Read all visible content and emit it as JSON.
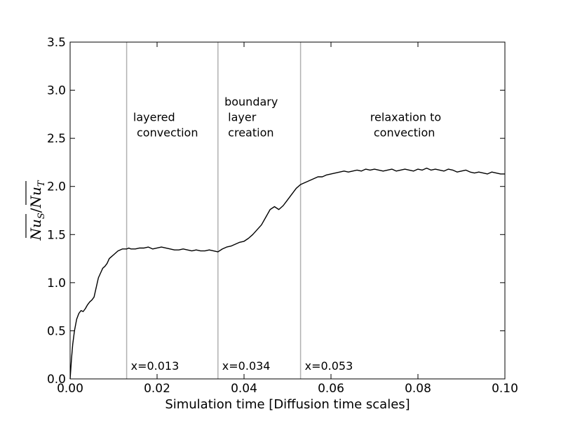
{
  "chart_data": {
    "type": "line",
    "xlabel": "Simulation time [Diffusion time scales]",
    "ylabel": "Nu_S / Nu_T",
    "xlim": [
      0.0,
      0.1
    ],
    "ylim": [
      0.0,
      3.5
    ],
    "x_ticks": [
      0.0,
      0.02,
      0.04,
      0.06,
      0.08,
      0.1
    ],
    "x_tick_labels": [
      "0.00",
      "0.02",
      "0.04",
      "0.06",
      "0.08",
      "0.10"
    ],
    "y_ticks": [
      0.0,
      0.5,
      1.0,
      1.5,
      2.0,
      2.5,
      3.0,
      3.5
    ],
    "y_tick_labels": [
      "0.0",
      "0.5",
      "1.0",
      "1.5",
      "2.0",
      "2.5",
      "3.0",
      "3.5"
    ],
    "grid": false,
    "series_color": "#000000",
    "vline_color": "#b0b0b0",
    "vlines": [
      {
        "x": 0.013,
        "label": "x=0.013"
      },
      {
        "x": 0.034,
        "label": "x=0.034"
      },
      {
        "x": 0.053,
        "label": "x=0.053"
      }
    ],
    "annotations": [
      {
        "lines": [
          "layered",
          " convection"
        ],
        "x": 0.0145,
        "y": 2.68
      },
      {
        "lines": [
          "boundary",
          " layer",
          " creation"
        ],
        "x": 0.0355,
        "y": 2.84
      },
      {
        "lines": [
          "relaxation to",
          " convection"
        ],
        "x": 0.069,
        "y": 2.68
      }
    ],
    "series": [
      {
        "x": [
          0.0,
          0.0003,
          0.0006,
          0.001,
          0.0015,
          0.002,
          0.0025,
          0.003,
          0.0035,
          0.004,
          0.0045,
          0.005,
          0.0055,
          0.006,
          0.0065,
          0.007,
          0.0075,
          0.008,
          0.0085,
          0.009,
          0.0095,
          0.01,
          0.0105,
          0.011,
          0.0115,
          0.012,
          0.0125,
          0.013,
          0.0135,
          0.014,
          0.015,
          0.016,
          0.017,
          0.018,
          0.019,
          0.02,
          0.021,
          0.022,
          0.023,
          0.024,
          0.025,
          0.026,
          0.027,
          0.028,
          0.029,
          0.03,
          0.031,
          0.032,
          0.033,
          0.034,
          0.035,
          0.036,
          0.037,
          0.038,
          0.039,
          0.04,
          0.041,
          0.042,
          0.043,
          0.044,
          0.045,
          0.046,
          0.047,
          0.048,
          0.049,
          0.05,
          0.051,
          0.052,
          0.053,
          0.054,
          0.055,
          0.056,
          0.057,
          0.058,
          0.059,
          0.06,
          0.061,
          0.062,
          0.063,
          0.064,
          0.065,
          0.066,
          0.067,
          0.068,
          0.069,
          0.07,
          0.071,
          0.072,
          0.073,
          0.074,
          0.075,
          0.076,
          0.077,
          0.078,
          0.079,
          0.08,
          0.081,
          0.082,
          0.083,
          0.084,
          0.085,
          0.086,
          0.087,
          0.088,
          0.089,
          0.09,
          0.091,
          0.092,
          0.093,
          0.094,
          0.095,
          0.096,
          0.097,
          0.098,
          0.099,
          0.1
        ],
        "values": [
          0.0,
          0.2,
          0.36,
          0.5,
          0.62,
          0.68,
          0.71,
          0.7,
          0.73,
          0.77,
          0.8,
          0.82,
          0.85,
          0.95,
          1.05,
          1.1,
          1.15,
          1.17,
          1.2,
          1.25,
          1.27,
          1.29,
          1.31,
          1.33,
          1.34,
          1.35,
          1.35,
          1.35,
          1.36,
          1.35,
          1.35,
          1.36,
          1.36,
          1.37,
          1.35,
          1.36,
          1.37,
          1.36,
          1.35,
          1.34,
          1.34,
          1.35,
          1.34,
          1.33,
          1.34,
          1.33,
          1.33,
          1.34,
          1.33,
          1.32,
          1.35,
          1.37,
          1.38,
          1.4,
          1.42,
          1.43,
          1.46,
          1.5,
          1.55,
          1.6,
          1.68,
          1.76,
          1.79,
          1.76,
          1.8,
          1.86,
          1.92,
          1.98,
          2.02,
          2.04,
          2.06,
          2.08,
          2.1,
          2.1,
          2.12,
          2.13,
          2.14,
          2.15,
          2.16,
          2.15,
          2.16,
          2.17,
          2.16,
          2.18,
          2.17,
          2.18,
          2.17,
          2.16,
          2.17,
          2.18,
          2.16,
          2.17,
          2.18,
          2.17,
          2.16,
          2.18,
          2.17,
          2.19,
          2.17,
          2.18,
          2.17,
          2.16,
          2.18,
          2.17,
          2.15,
          2.16,
          2.17,
          2.15,
          2.14,
          2.15,
          2.14,
          2.13,
          2.15,
          2.14,
          2.13,
          2.13
        ]
      }
    ]
  }
}
